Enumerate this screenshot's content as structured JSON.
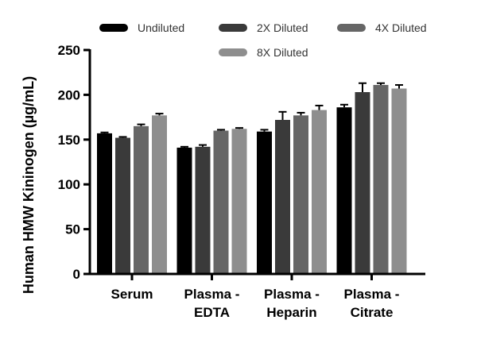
{
  "chart_data": {
    "type": "bar",
    "categories": [
      [
        "Serum"
      ],
      [
        "Plasma -",
        "EDTA"
      ],
      [
        "Plasma -",
        "Heparin"
      ],
      [
        "Plasma -",
        "Citrate"
      ]
    ],
    "series": [
      {
        "name": "Undiluted",
        "color": "#000000",
        "values": [
          157,
          141,
          159,
          186
        ],
        "errors": [
          1,
          1,
          2,
          3
        ]
      },
      {
        "name": "2X Diluted",
        "color": "#3a3a3a",
        "values": [
          152,
          142,
          172,
          203
        ],
        "errors": [
          1,
          2,
          9,
          10
        ]
      },
      {
        "name": "4X Diluted",
        "color": "#666666",
        "values": [
          165,
          160,
          177,
          211
        ],
        "errors": [
          2,
          1,
          3,
          2
        ]
      },
      {
        "name": "8X Diluted",
        "color": "#8e8e8e",
        "values": [
          177,
          162,
          183,
          207
        ],
        "errors": [
          2,
          1,
          5,
          4
        ]
      }
    ],
    "ylabel": "Human HMW Kininogen (µg/mL)",
    "xlabel": "",
    "ylim": [
      0,
      250
    ],
    "yticks": [
      0,
      50,
      100,
      150,
      200,
      250
    ],
    "grid": false,
    "legend_position": "top"
  }
}
